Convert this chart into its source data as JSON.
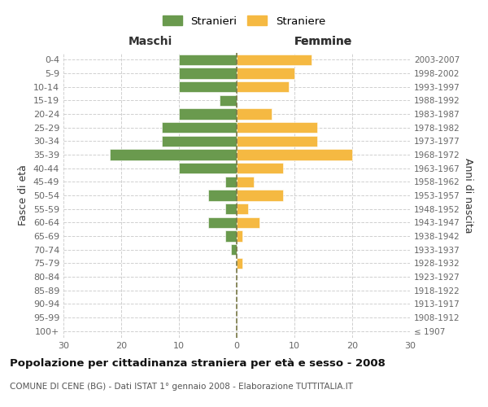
{
  "age_groups": [
    "100+",
    "95-99",
    "90-94",
    "85-89",
    "80-84",
    "75-79",
    "70-74",
    "65-69",
    "60-64",
    "55-59",
    "50-54",
    "45-49",
    "40-44",
    "35-39",
    "30-34",
    "25-29",
    "20-24",
    "15-19",
    "10-14",
    "5-9",
    "0-4"
  ],
  "birth_years": [
    "≤ 1907",
    "1908-1912",
    "1913-1917",
    "1918-1922",
    "1923-1927",
    "1928-1932",
    "1933-1937",
    "1938-1942",
    "1943-1947",
    "1948-1952",
    "1953-1957",
    "1958-1962",
    "1963-1967",
    "1968-1972",
    "1973-1977",
    "1978-1982",
    "1983-1987",
    "1988-1992",
    "1993-1997",
    "1998-2002",
    "2003-2007"
  ],
  "males": [
    0,
    0,
    0,
    0,
    0,
    0,
    1,
    2,
    5,
    2,
    5,
    2,
    10,
    22,
    13,
    13,
    10,
    3,
    10,
    10,
    10
  ],
  "females": [
    0,
    0,
    0,
    0,
    0,
    1,
    0,
    1,
    4,
    2,
    8,
    3,
    8,
    20,
    14,
    14,
    6,
    0,
    9,
    10,
    13
  ],
  "color_male": "#6a9a4e",
  "color_female": "#f5b942",
  "xlim": 30,
  "title": "Popolazione per cittadinanza straniera per età e sesso - 2008",
  "subtitle": "COMUNE DI CENE (BG) - Dati ISTAT 1° gennaio 2008 - Elaborazione TUTTITALIA.IT",
  "ylabel_left": "Fasce di età",
  "ylabel_right": "Anni di nascita",
  "label_maschi": "Maschi",
  "label_femmine": "Femmine",
  "legend_stranieri": "Stranieri",
  "legend_straniere": "Straniere",
  "background_color": "#ffffff",
  "grid_color": "#d0d0d0",
  "xticks": [
    -30,
    -20,
    -10,
    0,
    10,
    20,
    30
  ]
}
